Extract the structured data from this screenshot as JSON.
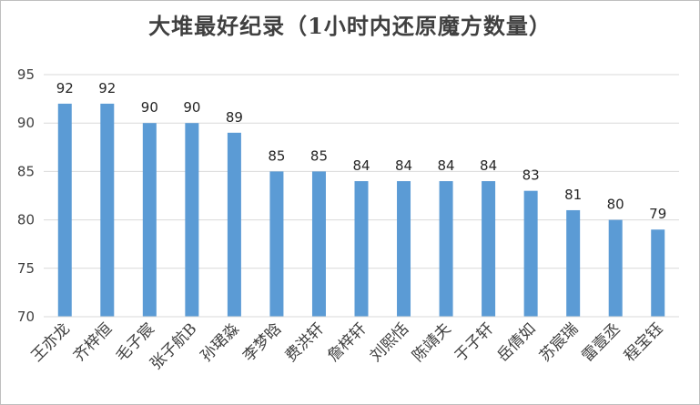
{
  "chart_data": {
    "type": "bar",
    "title": "大堆最好纪录（1小时内还原魔方数量）",
    "categories": [
      "王亦龙",
      "齐梓恒",
      "毛子宸",
      "张子航B",
      "孙珺淼",
      "李梦晗",
      "费洪轩",
      "詹梓轩",
      "刘熙恬",
      "陈靖夫",
      "于子轩",
      "岳倩如",
      "苏宸瑞",
      "雷壹丞",
      "程宝钰"
    ],
    "values": [
      92,
      92,
      90,
      90,
      89,
      85,
      85,
      84,
      84,
      84,
      84,
      83,
      81,
      80,
      79
    ],
    "ylim": [
      70,
      95
    ],
    "yticks": [
      70,
      75,
      80,
      85,
      90,
      95
    ],
    "xlabel": "",
    "ylabel": "",
    "grid": true,
    "data_labels": true,
    "bar_color": "#5b9bd5",
    "grid_color": "#d9d9d9"
  }
}
